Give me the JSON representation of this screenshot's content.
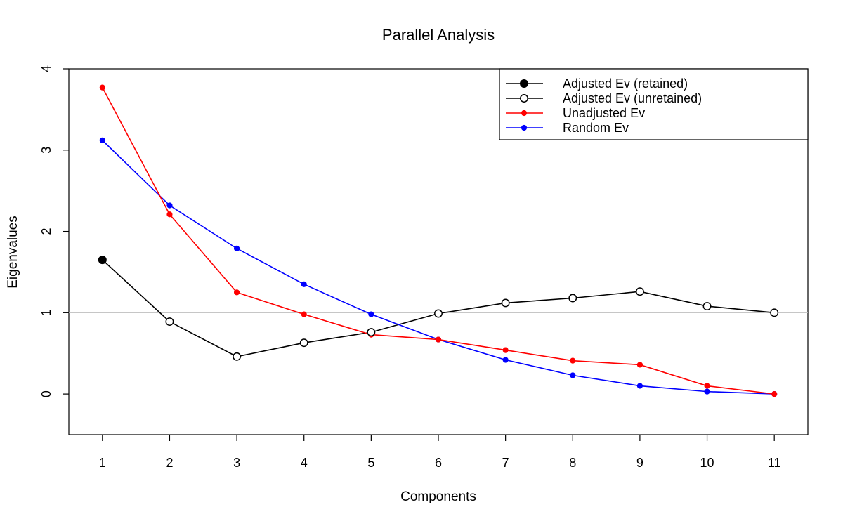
{
  "chart_data": {
    "type": "line",
    "title": "Parallel Analysis",
    "xlabel": "Components",
    "ylabel": "Eigenvalues",
    "x": [
      1,
      2,
      3,
      4,
      5,
      6,
      7,
      8,
      9,
      10,
      11
    ],
    "x_ticks": [
      "1",
      "2",
      "3",
      "4",
      "5",
      "6",
      "7",
      "8",
      "9",
      "10",
      "11"
    ],
    "y_ticks": [
      "0",
      "1",
      "2",
      "3",
      "4"
    ],
    "xlim": [
      0.5,
      11.5
    ],
    "ylim": [
      -0.5,
      4
    ],
    "reference_line": {
      "y": 1,
      "color": "#bebebe"
    },
    "grid": false,
    "legend_position": "top-right",
    "series": [
      {
        "name": "Adjusted Ev (retained)",
        "color": "#000000",
        "marker": "filled-circle",
        "x": [
          1
        ],
        "values": [
          1.65
        ]
      },
      {
        "name": "Adjusted Ev (unretained)",
        "color": "#000000",
        "marker": "open-circle",
        "x": [
          2,
          3,
          4,
          5,
          6,
          7,
          8,
          9,
          10,
          11
        ],
        "values": [
          0.89,
          0.46,
          0.63,
          0.76,
          0.99,
          1.12,
          1.18,
          1.26,
          1.08,
          1.0
        ]
      },
      {
        "name": "Unadjusted Ev",
        "color": "#ff0000",
        "marker": "dot",
        "x": [
          1,
          2,
          3,
          4,
          5,
          6,
          7,
          8,
          9,
          10,
          11
        ],
        "values": [
          3.77,
          2.21,
          1.25,
          0.98,
          0.73,
          0.67,
          0.54,
          0.41,
          0.36,
          0.1,
          0.0
        ]
      },
      {
        "name": "Random Ev",
        "color": "#0000ff",
        "marker": "dot",
        "x": [
          1,
          2,
          3,
          4,
          5,
          6,
          7,
          8,
          9,
          10,
          11
        ],
        "values": [
          3.12,
          2.32,
          1.79,
          1.35,
          0.98,
          0.67,
          0.42,
          0.23,
          0.1,
          0.03,
          0.0
        ]
      }
    ]
  }
}
